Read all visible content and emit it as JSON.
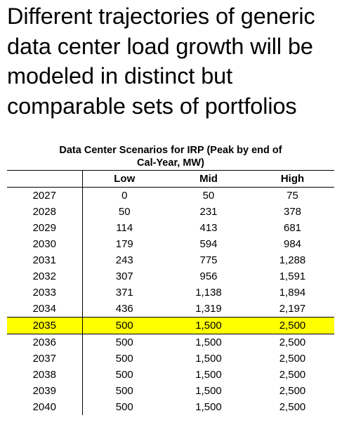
{
  "headline": {
    "lines": [
      "Different trajectories of generic",
      "data center load growth will be",
      "modeled in distinct but",
      "comparable sets of portfolios"
    ]
  },
  "table": {
    "title_lines": [
      "Data Center Scenarios for IRP (Peak by end of",
      "Cal-Year, MW)"
    ],
    "columns": [
      "",
      "Low",
      "Mid",
      "High"
    ],
    "rows": [
      [
        "2027",
        "0",
        "50",
        "75"
      ],
      [
        "2028",
        "50",
        "231",
        "378"
      ],
      [
        "2029",
        "114",
        "413",
        "681"
      ],
      [
        "2030",
        "179",
        "594",
        "984"
      ],
      [
        "2031",
        "243",
        "775",
        "1,288"
      ],
      [
        "2032",
        "307",
        "956",
        "1,591"
      ],
      [
        "2033",
        "371",
        "1,138",
        "1,894"
      ],
      [
        "2034",
        "436",
        "1,319",
        "2,197"
      ],
      [
        "2035",
        "500",
        "1,500",
        "2,500"
      ],
      [
        "2036",
        "500",
        "1,500",
        "2,500"
      ],
      [
        "2037",
        "500",
        "1,500",
        "2,500"
      ],
      [
        "2038",
        "500",
        "1,500",
        "2,500"
      ],
      [
        "2039",
        "500",
        "1,500",
        "2,500"
      ],
      [
        "2040",
        "500",
        "1,500",
        "2,500"
      ]
    ],
    "highlight_row_year": "2035",
    "highlight_color": "#ffff00"
  }
}
